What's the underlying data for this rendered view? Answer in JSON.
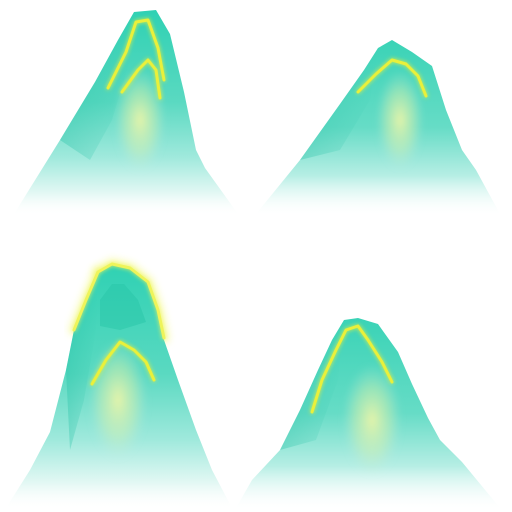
{
  "sprite_sheet": {
    "sprites": [
      {
        "name": "mountain-tall-double-ridge"
      },
      {
        "name": "mountain-wide-single-ridge"
      },
      {
        "name": "mountain-glowing-peak"
      },
      {
        "name": "mountain-ridge-left-streak"
      }
    ],
    "colors": {
      "body_top": "#3fd6b9",
      "body_mid": "#7fe3cf",
      "body_fade": "#ffffff",
      "core_glow": "#e6f3a6",
      "ridge_glow": "#e8f23a",
      "rim_glow": "#f2f86a"
    }
  }
}
